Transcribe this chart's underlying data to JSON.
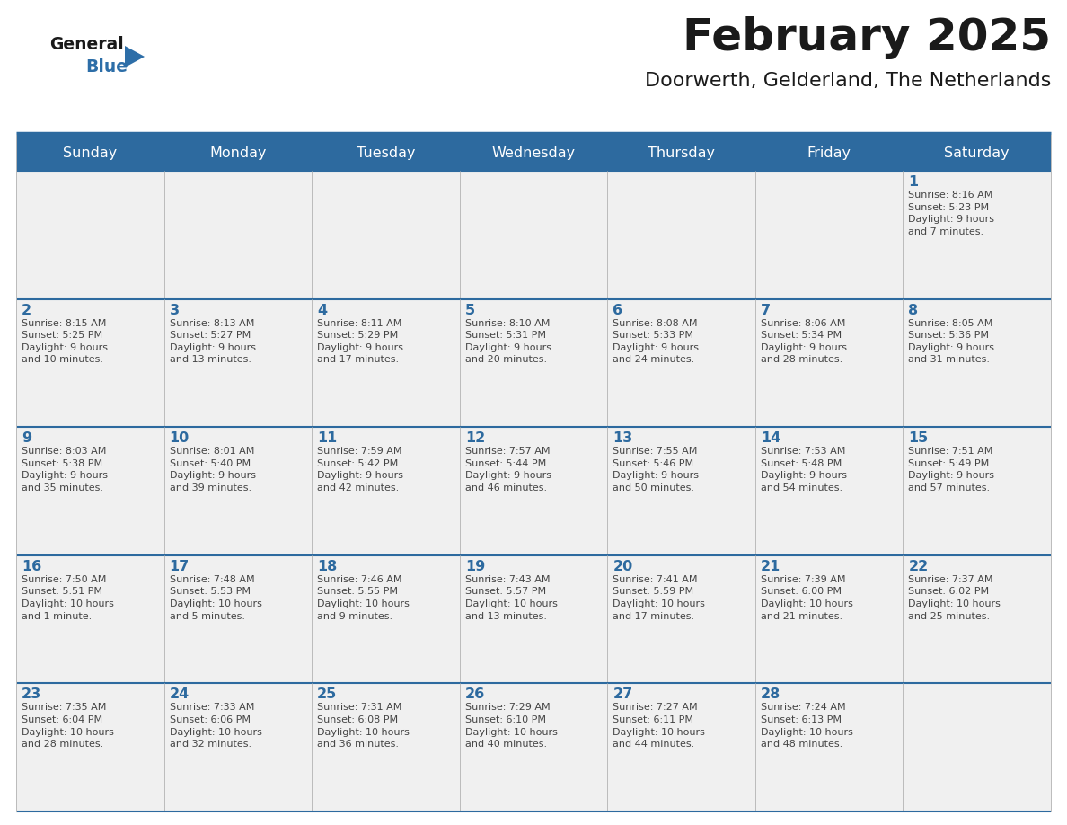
{
  "title": "February 2025",
  "subtitle": "Doorwerth, Gelderland, The Netherlands",
  "days_of_week": [
    "Sunday",
    "Monday",
    "Tuesday",
    "Wednesday",
    "Thursday",
    "Friday",
    "Saturday"
  ],
  "header_bg": "#2D6A9F",
  "header_text": "#FFFFFF",
  "cell_bg": "#F0F0F0",
  "cell_border_color": "#BBBBBB",
  "row_border_color": "#2D6A9F",
  "day_num_color": "#2D6A9F",
  "cell_text_color": "#444444",
  "title_color": "#1a1a1a",
  "subtitle_color": "#1a1a1a",
  "logo_general_color": "#1a1a1a",
  "logo_blue_color": "#2D6EA8",
  "logo_triangle_color": "#2D6EA8",
  "bg_color": "#FFFFFF",
  "weeks": [
    [
      {
        "day": null,
        "text": ""
      },
      {
        "day": null,
        "text": ""
      },
      {
        "day": null,
        "text": ""
      },
      {
        "day": null,
        "text": ""
      },
      {
        "day": null,
        "text": ""
      },
      {
        "day": null,
        "text": ""
      },
      {
        "day": 1,
        "text": "Sunrise: 8:16 AM\nSunset: 5:23 PM\nDaylight: 9 hours\nand 7 minutes."
      }
    ],
    [
      {
        "day": 2,
        "text": "Sunrise: 8:15 AM\nSunset: 5:25 PM\nDaylight: 9 hours\nand 10 minutes."
      },
      {
        "day": 3,
        "text": "Sunrise: 8:13 AM\nSunset: 5:27 PM\nDaylight: 9 hours\nand 13 minutes."
      },
      {
        "day": 4,
        "text": "Sunrise: 8:11 AM\nSunset: 5:29 PM\nDaylight: 9 hours\nand 17 minutes."
      },
      {
        "day": 5,
        "text": "Sunrise: 8:10 AM\nSunset: 5:31 PM\nDaylight: 9 hours\nand 20 minutes."
      },
      {
        "day": 6,
        "text": "Sunrise: 8:08 AM\nSunset: 5:33 PM\nDaylight: 9 hours\nand 24 minutes."
      },
      {
        "day": 7,
        "text": "Sunrise: 8:06 AM\nSunset: 5:34 PM\nDaylight: 9 hours\nand 28 minutes."
      },
      {
        "day": 8,
        "text": "Sunrise: 8:05 AM\nSunset: 5:36 PM\nDaylight: 9 hours\nand 31 minutes."
      }
    ],
    [
      {
        "day": 9,
        "text": "Sunrise: 8:03 AM\nSunset: 5:38 PM\nDaylight: 9 hours\nand 35 minutes."
      },
      {
        "day": 10,
        "text": "Sunrise: 8:01 AM\nSunset: 5:40 PM\nDaylight: 9 hours\nand 39 minutes."
      },
      {
        "day": 11,
        "text": "Sunrise: 7:59 AM\nSunset: 5:42 PM\nDaylight: 9 hours\nand 42 minutes."
      },
      {
        "day": 12,
        "text": "Sunrise: 7:57 AM\nSunset: 5:44 PM\nDaylight: 9 hours\nand 46 minutes."
      },
      {
        "day": 13,
        "text": "Sunrise: 7:55 AM\nSunset: 5:46 PM\nDaylight: 9 hours\nand 50 minutes."
      },
      {
        "day": 14,
        "text": "Sunrise: 7:53 AM\nSunset: 5:48 PM\nDaylight: 9 hours\nand 54 minutes."
      },
      {
        "day": 15,
        "text": "Sunrise: 7:51 AM\nSunset: 5:49 PM\nDaylight: 9 hours\nand 57 minutes."
      }
    ],
    [
      {
        "day": 16,
        "text": "Sunrise: 7:50 AM\nSunset: 5:51 PM\nDaylight: 10 hours\nand 1 minute."
      },
      {
        "day": 17,
        "text": "Sunrise: 7:48 AM\nSunset: 5:53 PM\nDaylight: 10 hours\nand 5 minutes."
      },
      {
        "day": 18,
        "text": "Sunrise: 7:46 AM\nSunset: 5:55 PM\nDaylight: 10 hours\nand 9 minutes."
      },
      {
        "day": 19,
        "text": "Sunrise: 7:43 AM\nSunset: 5:57 PM\nDaylight: 10 hours\nand 13 minutes."
      },
      {
        "day": 20,
        "text": "Sunrise: 7:41 AM\nSunset: 5:59 PM\nDaylight: 10 hours\nand 17 minutes."
      },
      {
        "day": 21,
        "text": "Sunrise: 7:39 AM\nSunset: 6:00 PM\nDaylight: 10 hours\nand 21 minutes."
      },
      {
        "day": 22,
        "text": "Sunrise: 7:37 AM\nSunset: 6:02 PM\nDaylight: 10 hours\nand 25 minutes."
      }
    ],
    [
      {
        "day": 23,
        "text": "Sunrise: 7:35 AM\nSunset: 6:04 PM\nDaylight: 10 hours\nand 28 minutes."
      },
      {
        "day": 24,
        "text": "Sunrise: 7:33 AM\nSunset: 6:06 PM\nDaylight: 10 hours\nand 32 minutes."
      },
      {
        "day": 25,
        "text": "Sunrise: 7:31 AM\nSunset: 6:08 PM\nDaylight: 10 hours\nand 36 minutes."
      },
      {
        "day": 26,
        "text": "Sunrise: 7:29 AM\nSunset: 6:10 PM\nDaylight: 10 hours\nand 40 minutes."
      },
      {
        "day": 27,
        "text": "Sunrise: 7:27 AM\nSunset: 6:11 PM\nDaylight: 10 hours\nand 44 minutes."
      },
      {
        "day": 28,
        "text": "Sunrise: 7:24 AM\nSunset: 6:13 PM\nDaylight: 10 hours\nand 48 minutes."
      },
      {
        "day": null,
        "text": ""
      }
    ]
  ]
}
